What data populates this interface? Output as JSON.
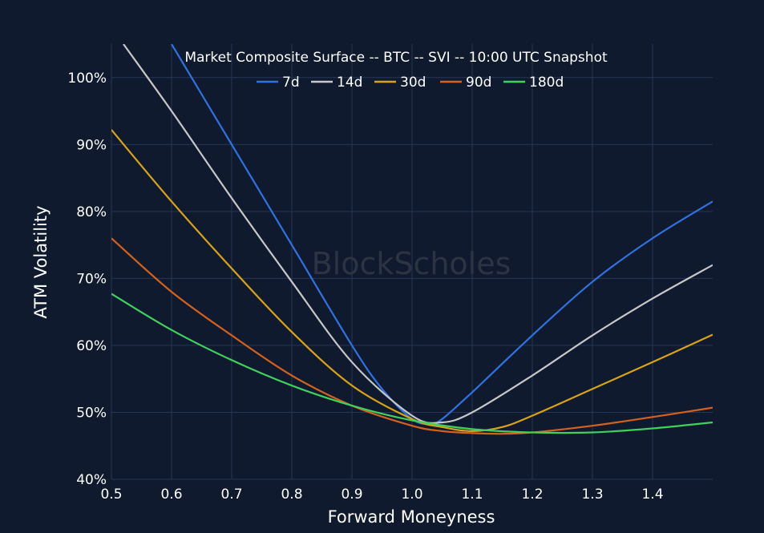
{
  "chart_data": {
    "type": "line",
    "title": "Market Composite Surface -- BTC -- SVI -- 10:00 UTC Snapshot",
    "xlabel": "Forward Moneyness",
    "ylabel": "ATM Volatility",
    "xlim": [
      0.5,
      1.5
    ],
    "ylim": [
      40,
      105
    ],
    "x_ticks": [
      0.5,
      0.6,
      0.7,
      0.8,
      0.9,
      1.0,
      1.1,
      1.2,
      1.3,
      1.4
    ],
    "x_tick_labels": [
      "0.5",
      "0.6",
      "0.7",
      "0.8",
      "0.9",
      "1.0",
      "1.1",
      "1.2",
      "1.3",
      "1.4"
    ],
    "y_ticks": [
      40,
      50,
      60,
      70,
      80,
      90,
      100
    ],
    "y_tick_labels": [
      "40%",
      "50%",
      "60%",
      "70%",
      "80%",
      "90%",
      "100%"
    ],
    "grid": true,
    "legend_position": "top-center",
    "watermark": "BlockScholes",
    "series": [
      {
        "name": "7d",
        "color": "#2f72e0",
        "x": [
          0.6,
          0.7,
          0.8,
          0.9,
          0.95,
          1.0,
          1.03,
          1.05,
          1.1,
          1.2,
          1.3,
          1.4,
          1.5
        ],
        "y": [
          105,
          90,
          75,
          60,
          53.5,
          49,
          48.3,
          49,
          53,
          61.5,
          69.5,
          76,
          81.5
        ]
      },
      {
        "name": "14d",
        "color": "#c7c7c7",
        "x": [
          0.52,
          0.6,
          0.7,
          0.8,
          0.9,
          1.0,
          1.05,
          1.1,
          1.2,
          1.3,
          1.4,
          1.5
        ],
        "y": [
          105,
          95,
          82,
          69.5,
          57.5,
          49.5,
          48.5,
          50,
          55.5,
          61.5,
          67,
          72
        ]
      },
      {
        "name": "30d",
        "color": "#d9a316",
        "x": [
          0.5,
          0.6,
          0.7,
          0.8,
          0.9,
          1.0,
          1.05,
          1.1,
          1.15,
          1.2,
          1.3,
          1.4,
          1.5
        ],
        "y": [
          92.2,
          81.5,
          71.5,
          62,
          54,
          49,
          47.8,
          47.2,
          47.8,
          49.5,
          53.5,
          57.5,
          61.6
        ]
      },
      {
        "name": "90d",
        "color": "#d4621c",
        "x": [
          0.5,
          0.6,
          0.7,
          0.8,
          0.9,
          1.0,
          1.05,
          1.1,
          1.15,
          1.2,
          1.3,
          1.4,
          1.5
        ],
        "y": [
          76,
          68,
          61.5,
          55.5,
          51,
          48,
          47.2,
          46.9,
          46.8,
          47,
          48,
          49.3,
          50.7
        ]
      },
      {
        "name": "180d",
        "color": "#3fd15c",
        "x": [
          0.5,
          0.6,
          0.7,
          0.8,
          0.9,
          1.0,
          1.1,
          1.2,
          1.3,
          1.4,
          1.5
        ],
        "y": [
          67.7,
          62.3,
          57.8,
          54,
          51,
          48.8,
          47.5,
          47,
          47,
          47.6,
          48.5
        ]
      }
    ]
  }
}
